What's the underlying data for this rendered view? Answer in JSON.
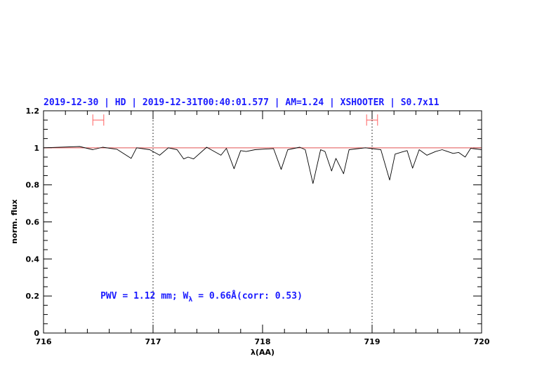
{
  "chart_data": {
    "type": "line",
    "title": "2019-12-30 | HD | 2019-12-31T00:40:01.577 | AM=1.24 | XSHOOTER | S0.7x11",
    "xlabel": "λ(AA)",
    "ylabel": "norm. flux",
    "xlim": [
      716,
      720
    ],
    "ylim": [
      0,
      1.2
    ],
    "xticks": [
      "716",
      "717",
      "718",
      "719",
      "720"
    ],
    "yticks": [
      "0",
      "0.2",
      "0.4",
      "0.6",
      "0.8",
      "1",
      "1.2"
    ],
    "grid": false,
    "reference_line": {
      "y": 1.0,
      "color": "#e05050"
    },
    "vertical_dotted_lines": [
      717,
      719
    ],
    "error_bars": [
      {
        "x": 716.5,
        "xerr": 0.05,
        "y": 1.15,
        "color": "#ff6060"
      },
      {
        "x": 719.0,
        "xerr": 0.05,
        "y": 1.15,
        "color": "#ff6060"
      }
    ],
    "annotation": {
      "prefix": "PWV = 1.12 mm; W",
      "subscript": "λ",
      "suffix": " = 0.66Å(corr: 0.53)",
      "x": 716.52,
      "y": 0.2,
      "color": "#1a1aff"
    },
    "series": [
      {
        "color": "#000000",
        "x": [
          716.0,
          716.33,
          716.45,
          716.54,
          716.67,
          716.8,
          716.85,
          716.97,
          717.06,
          717.14,
          717.22,
          717.28,
          717.32,
          717.37,
          717.49,
          717.62,
          717.67,
          717.74,
          717.8,
          717.85,
          717.93,
          718.1,
          718.17,
          718.23,
          718.34,
          718.39,
          718.46,
          718.53,
          718.57,
          718.63,
          718.67,
          718.74,
          718.79,
          718.94,
          719.08,
          719.16,
          719.21,
          719.27,
          719.32,
          719.37,
          719.43,
          719.5,
          719.58,
          719.64,
          719.74,
          719.79,
          719.85,
          719.9,
          720.0
        ],
        "y": [
          1.0,
          1.007,
          0.99,
          1.003,
          0.992,
          0.943,
          1.0,
          0.99,
          0.96,
          1.0,
          0.99,
          0.94,
          0.95,
          0.94,
          1.003,
          0.96,
          0.997,
          0.887,
          0.985,
          0.98,
          0.99,
          0.996,
          0.883,
          0.99,
          1.003,
          0.99,
          0.807,
          0.99,
          0.98,
          0.875,
          0.943,
          0.86,
          0.99,
          1.0,
          0.99,
          0.826,
          0.966,
          0.977,
          0.985,
          0.89,
          0.99,
          0.96,
          0.98,
          0.99,
          0.97,
          0.975,
          0.95,
          0.997,
          0.99
        ]
      }
    ]
  }
}
